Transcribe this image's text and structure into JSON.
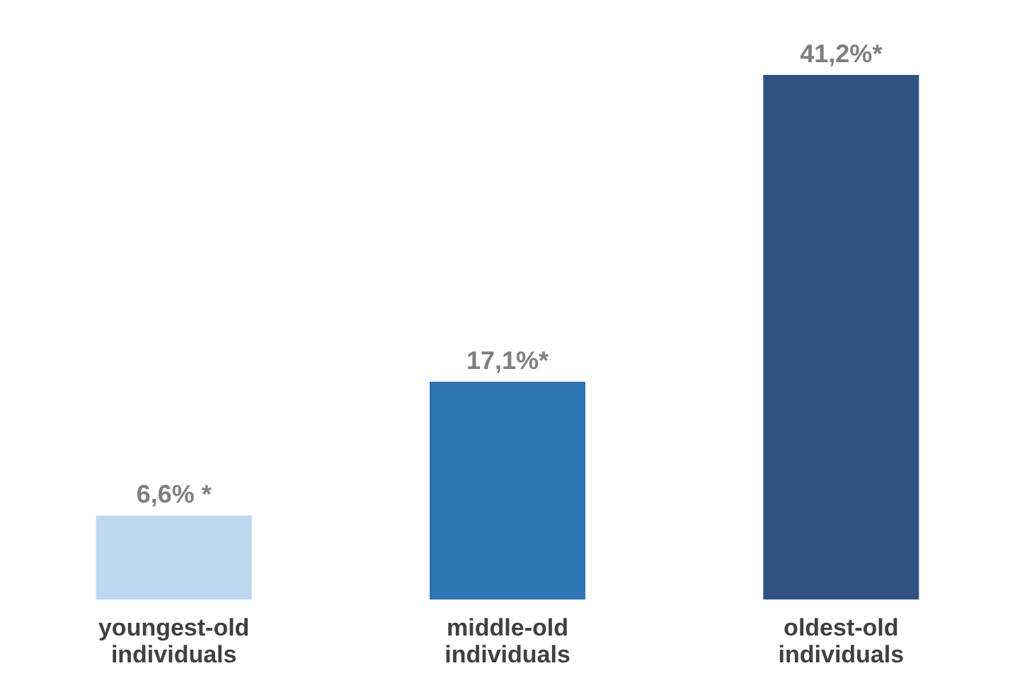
{
  "chart_data": {
    "type": "bar",
    "categories": [
      "youngest-old individuals",
      "middle-old individuals",
      "oldest-old individuals"
    ],
    "values": [
      6.6,
      17.1,
      41.2
    ],
    "value_labels": [
      "6,6% *",
      "17,1%*",
      "41,2%*"
    ],
    "colors": [
      "#bdd7ee",
      "#2e75b6",
      "#2f5283"
    ],
    "grid": false
  }
}
